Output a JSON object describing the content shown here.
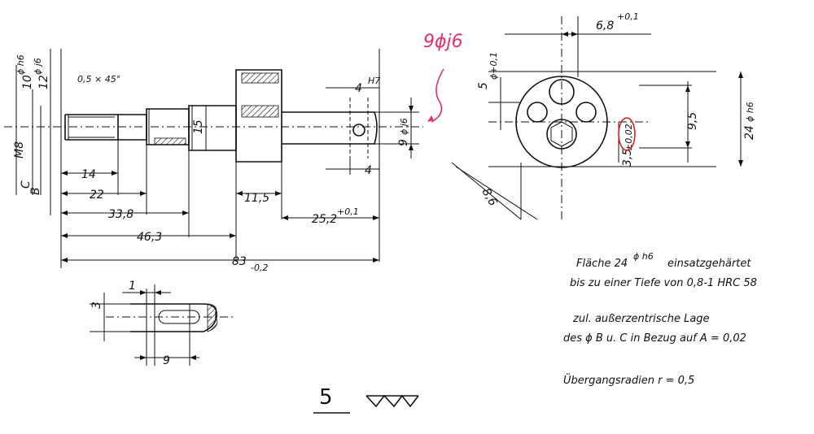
{
  "dims_side": {
    "m8": "M8",
    "d10": "10",
    "d10_tol": "ϕ h6",
    "d12": "12",
    "d12_tol": "ϕ j6",
    "chamfer": "0,5 × 45°",
    "l14": "14",
    "l22": "22",
    "l33_8": "33,8",
    "l46_3": "46,3",
    "l83": "83",
    "l83_tol": "-0,2",
    "w11_5": "11,5",
    "l25_2": "25,2",
    "l25_2_tol": "+0,1",
    "dia15": "15",
    "h7": "H7",
    "s4_top": "4",
    "s4_bot": "4",
    "d9": "9",
    "d9_tol": "ϕ j6",
    "lbl_c": "C",
    "lbl_b": "B"
  },
  "dims_detail": {
    "w1": "1",
    "h3": "3",
    "l9": "9"
  },
  "dims_front": {
    "w6_8": "6,8",
    "w6_8_tol": "+0,1",
    "d5": "5",
    "d5_tol": "ϕ+0,1",
    "d9_5": "9,5",
    "d24": "24",
    "d24_tol": "ϕ h6",
    "off3_5": "3,5",
    "off3_5_tol": "±0,02",
    "d8_6": "8,6"
  },
  "annotation": {
    "text": "9ϕj6",
    "color": "#e0306f"
  },
  "notes": {
    "line1a": "Fläche 24",
    "line1_tol": "ϕ h6",
    "line1b": "einsatzgehärtet",
    "line2": "bis zu einer Tiefe von 0,8-1   HRC 58",
    "line3": "zul. außerzentrische Lage",
    "line4": "des ϕ B u. C in Bezug auf A = 0,02",
    "line5": "Übergangsradien r = 0,5"
  },
  "surface": {
    "number": "5",
    "symbol": "triangle-finish-symbol"
  }
}
